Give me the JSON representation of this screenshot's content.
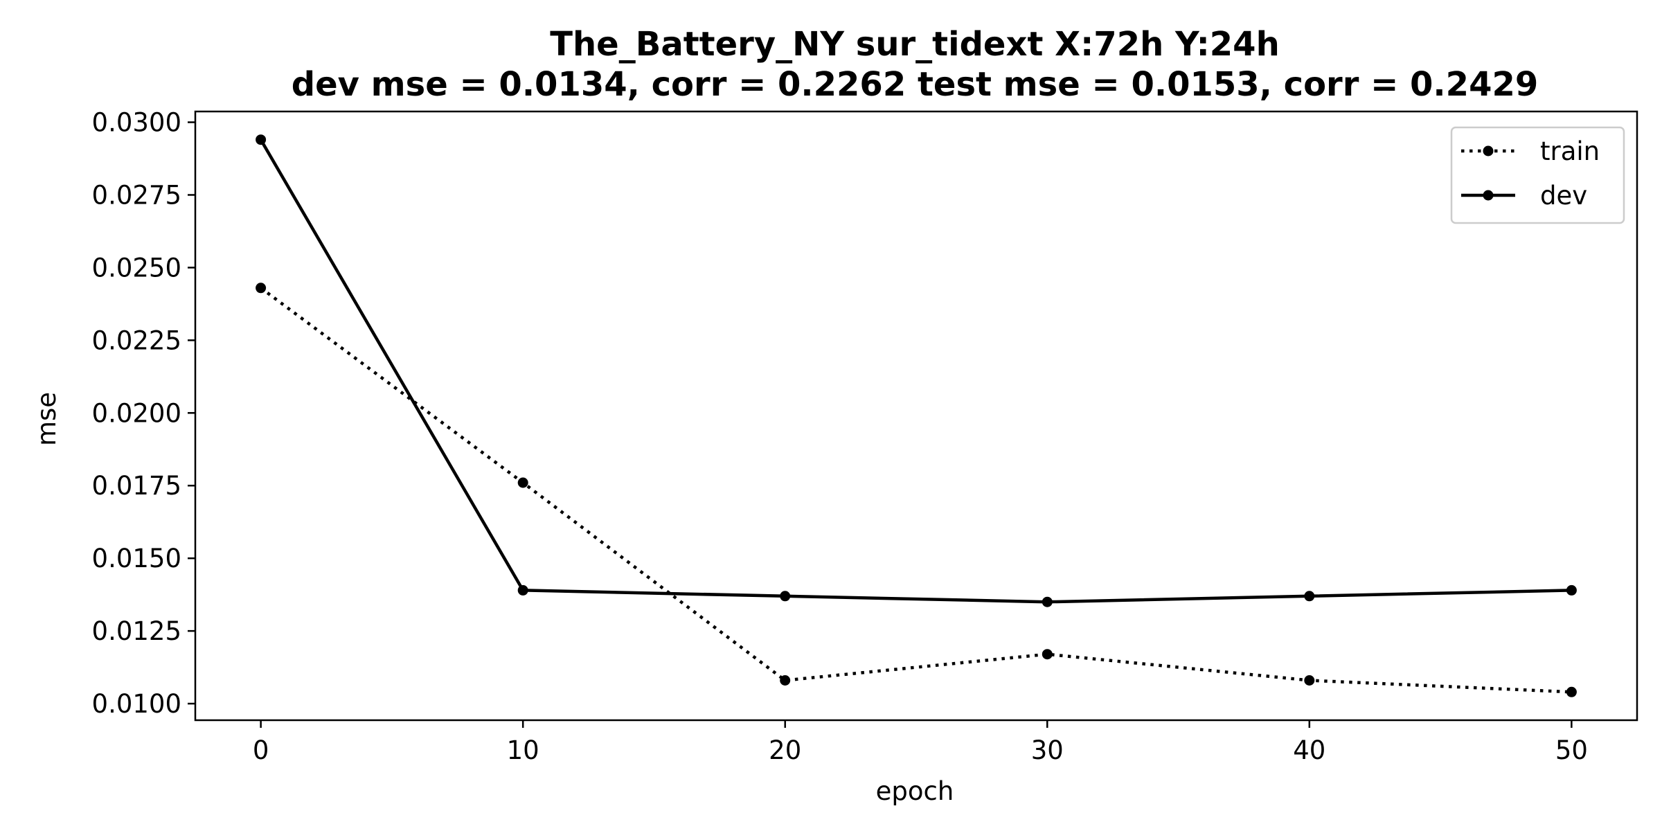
{
  "chart_data": {
    "type": "line",
    "title": "The_Battery_NY   sur_tidext   X:72h   Y:24h",
    "subtitle": "dev mse = 0.0134, corr = 0.2262   test mse = 0.0153, corr = 0.2429",
    "xlabel": "epoch",
    "ylabel": "mse",
    "x": [
      0,
      10,
      20,
      30,
      40,
      50
    ],
    "xlim": [
      -2.5,
      52.5
    ],
    "ylim": [
      0.00943,
      0.03037
    ],
    "xticks": [
      0,
      10,
      20,
      30,
      40,
      50
    ],
    "xtick_labels": [
      "0",
      "10",
      "20",
      "30",
      "40",
      "50"
    ],
    "yticks": [
      0.01,
      0.0125,
      0.015,
      0.0175,
      0.02,
      0.0225,
      0.025,
      0.0275,
      0.03
    ],
    "ytick_labels": [
      "0.0100",
      "0.0125",
      "0.0150",
      "0.0175",
      "0.0200",
      "0.0225",
      "0.0250",
      "0.0275",
      "0.0300"
    ],
    "grid": false,
    "legend_position": "upper-right",
    "series": [
      {
        "name": "train",
        "style": "dotted",
        "color": "#000000",
        "values": [
          0.0243,
          0.0176,
          0.0108,
          0.0117,
          0.0108,
          0.0104
        ]
      },
      {
        "name": "dev",
        "style": "solid",
        "color": "#000000",
        "values": [
          0.0294,
          0.0139,
          0.0137,
          0.0135,
          0.0137,
          0.0139
        ]
      }
    ]
  }
}
